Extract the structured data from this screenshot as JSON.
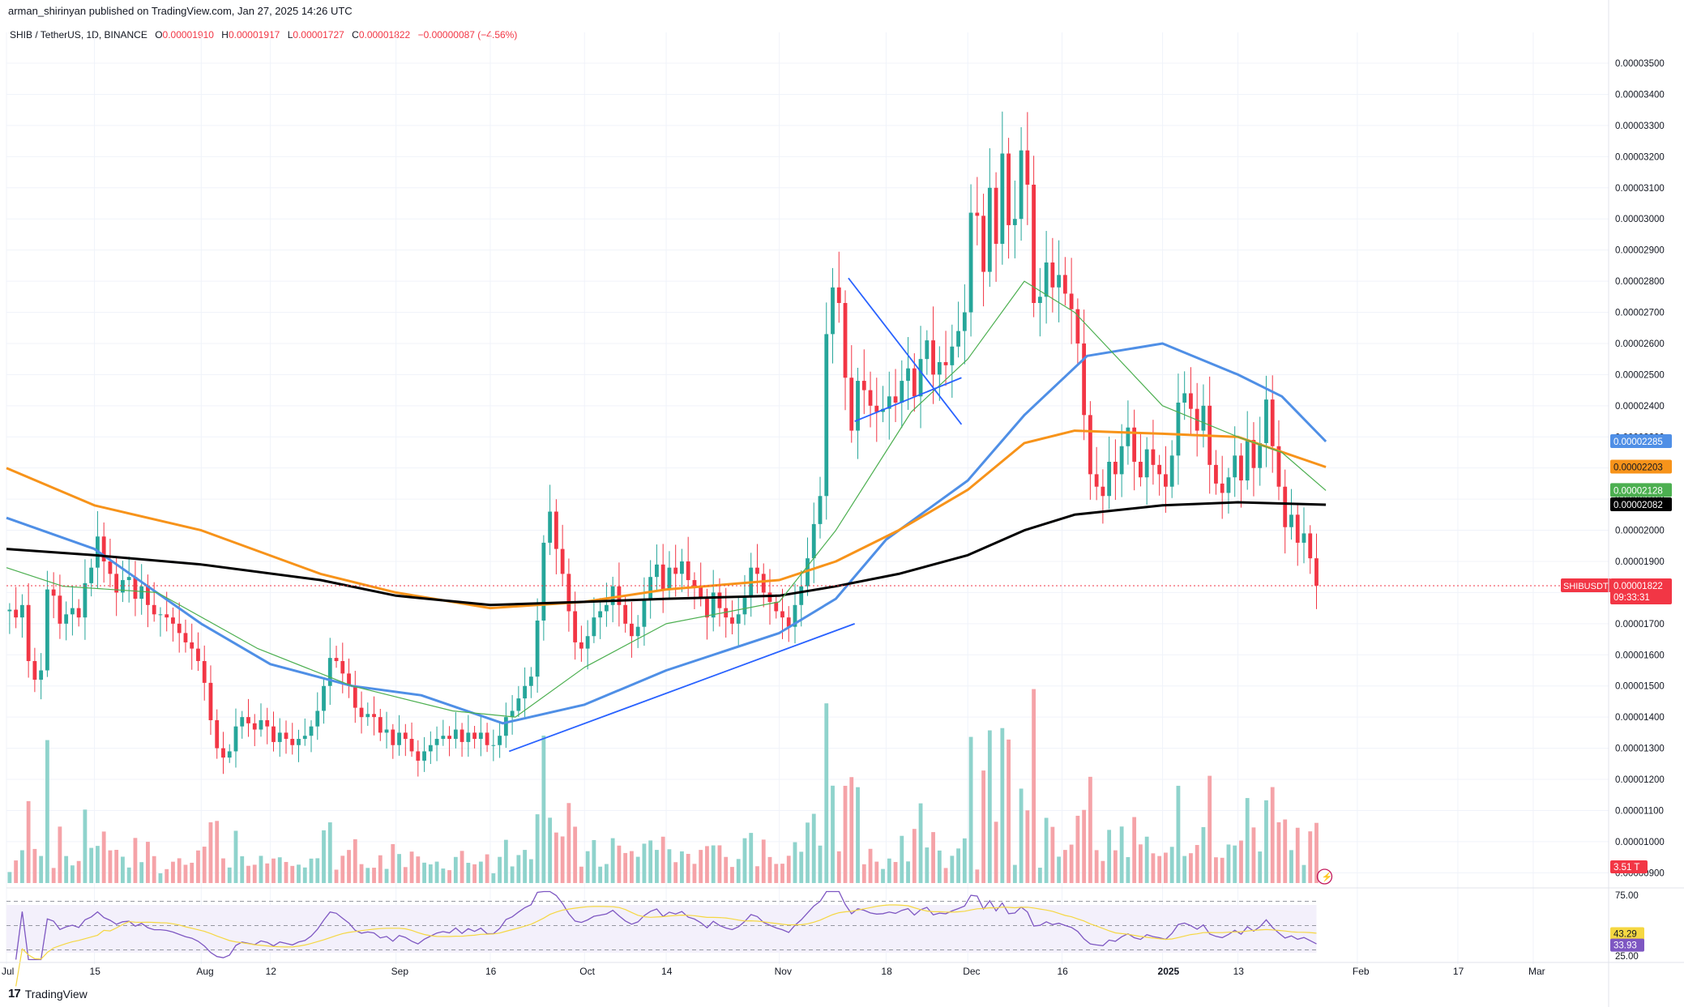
{
  "header": {
    "publish_line": "arman_shirinyan published on TradingView.com, Jan 27, 2025 14:26 UTC",
    "symbol": "SHIB / TetherUS, 1D, BINANCE",
    "ohlc": [
      {
        "label": "O",
        "value": "0.00001910"
      },
      {
        "label": "H",
        "value": "0.00001917"
      },
      {
        "label": "L",
        "value": "0.00001727"
      },
      {
        "label": "C",
        "value": "0.00001822"
      }
    ],
    "change": "−0.00000087 (−4.56%)"
  },
  "footer": {
    "brand": "TradingView",
    "brand_mark": "17"
  },
  "colors": {
    "up": "#26a69a",
    "down": "#f23645",
    "up_vol": "#8fd3cc",
    "down_vol": "#f5a3a8",
    "ma_blue": "#4f8fe6",
    "ma_orange": "#f7931a",
    "ma_black": "#000000",
    "ma_green": "#4caf50",
    "trend": "#2962ff",
    "rsi": "#7e57c2",
    "rsi_ma": "#f5d742",
    "rsi_bg": "#f3f0fb"
  },
  "chart_data": [
    {
      "type": "candlestick",
      "symbol": "SHIBUSDT",
      "ylim": [
        8.8e-06,
        3.56e-05
      ],
      "y_ticks": [
        "0.00000900",
        "0.00001000",
        "0.00001100",
        "0.00001200",
        "0.00001300",
        "0.00001400",
        "0.00001500",
        "0.00001600",
        "0.00001700",
        "0.00001800",
        "0.00001900",
        "0.00002000",
        "0.00002100",
        "0.00002200",
        "0.00002300",
        "0.00002400",
        "0.00002500",
        "0.00002600",
        "0.00002700",
        "0.00002800",
        "0.00002900",
        "0.00003000",
        "0.00003100",
        "0.00003200",
        "0.00003300",
        "0.00003400",
        "0.00003500"
      ],
      "x_range": [
        "2024-07-01",
        "2025-03-13"
      ],
      "x_ticks": [
        {
          "date": "2024-07-01",
          "label": "Jul"
        },
        {
          "date": "2024-07-15",
          "label": "15"
        },
        {
          "date": "2024-08-01",
          "label": "Aug"
        },
        {
          "date": "2024-08-12",
          "label": "12"
        },
        {
          "date": "2024-09-01",
          "label": "Sep"
        },
        {
          "date": "2024-09-16",
          "label": "16"
        },
        {
          "date": "2024-10-01",
          "label": "Oct"
        },
        {
          "date": "2024-10-14",
          "label": "14"
        },
        {
          "date": "2024-11-01",
          "label": "Nov"
        },
        {
          "date": "2024-11-18",
          "label": "18"
        },
        {
          "date": "2024-12-01",
          "label": "Dec"
        },
        {
          "date": "2024-12-16",
          "label": "16"
        },
        {
          "date": "2025-01-01",
          "label": "2025"
        },
        {
          "date": "2025-01-13",
          "label": "13"
        },
        {
          "date": "2025-02-01",
          "label": "Feb"
        },
        {
          "date": "2025-02-17",
          "label": "17"
        },
        {
          "date": "2025-03-01",
          "label": "Mar"
        }
      ],
      "candles_start": "2024-07-01",
      "closes": [
        1.745,
        1.72,
        1.76,
        1.58,
        1.52,
        1.55,
        1.81,
        1.79,
        1.7,
        1.73,
        1.75,
        1.72,
        1.83,
        1.88,
        1.98,
        1.9,
        1.86,
        1.8,
        1.84,
        1.85,
        1.78,
        1.82,
        1.76,
        1.73,
        1.73,
        1.72,
        1.7,
        1.67,
        1.64,
        1.62,
        1.58,
        1.51,
        1.39,
        1.3,
        1.27,
        1.29,
        1.37,
        1.4,
        1.38,
        1.36,
        1.39,
        1.37,
        1.32,
        1.35,
        1.33,
        1.31,
        1.33,
        1.34,
        1.37,
        1.42,
        1.5,
        1.59,
        1.58,
        1.54,
        1.5,
        1.43,
        1.4,
        1.41,
        1.4,
        1.35,
        1.36,
        1.31,
        1.35,
        1.33,
        1.29,
        1.26,
        1.29,
        1.31,
        1.33,
        1.34,
        1.33,
        1.36,
        1.32,
        1.35,
        1.33,
        1.35,
        1.31,
        1.31,
        1.34,
        1.4,
        1.42,
        1.46,
        1.5,
        1.53,
        1.71,
        1.96,
        2.06,
        1.94,
        1.86,
        1.74,
        1.64,
        1.62,
        1.66,
        1.72,
        1.74,
        1.76,
        1.82,
        1.76,
        1.7,
        1.66,
        1.69,
        1.78,
        1.85,
        1.89,
        1.81,
        1.88,
        1.86,
        1.9,
        1.84,
        1.82,
        1.78,
        1.72,
        1.8,
        1.75,
        1.72,
        1.7,
        1.73,
        1.79,
        1.88,
        1.86,
        1.8,
        1.77,
        1.74,
        1.72,
        1.69,
        1.76,
        1.82,
        1.91,
        2.02,
        2.11,
        2.63,
        2.78,
        2.73,
        2.49,
        2.32,
        2.48,
        2.45,
        2.4,
        2.38,
        2.39,
        2.43,
        2.41,
        2.48,
        2.52,
        2.43,
        2.55,
        2.61,
        2.5,
        2.54,
        2.53,
        2.59,
        2.64,
        2.7,
        3.02,
        3.01,
        2.83,
        3.1,
        2.92,
        3.21,
        2.98,
        3.0,
        3.22,
        3.11,
        2.73,
        2.75,
        2.86,
        2.78,
        2.82,
        2.76,
        2.71,
        2.6,
        2.37,
        2.18,
        2.14,
        2.11,
        2.22,
        2.18,
        2.27,
        2.33,
        2.22,
        2.17,
        2.26,
        2.21,
        2.18,
        2.14,
        2.24,
        2.41,
        2.44,
        2.39,
        2.32,
        2.4,
        2.21,
        2.15,
        2.12,
        2.17,
        2.24,
        2.16,
        2.29,
        2.2,
        2.28,
        2.42,
        2.27,
        2.14,
        2.01,
        2.05,
        1.96,
        1.99,
        1.91,
        1.822
      ],
      "opens": [
        1.74,
        1.745,
        1.72,
        1.76,
        1.58,
        1.52,
        1.55,
        1.81,
        1.79,
        1.7,
        1.73,
        1.75,
        1.72,
        1.83,
        1.88,
        1.98,
        1.9,
        1.86,
        1.8,
        1.84,
        1.85,
        1.78,
        1.82,
        1.76,
        1.73,
        1.73,
        1.72,
        1.7,
        1.67,
        1.64,
        1.62,
        1.58,
        1.51,
        1.39,
        1.3,
        1.27,
        1.29,
        1.37,
        1.4,
        1.38,
        1.36,
        1.39,
        1.37,
        1.32,
        1.35,
        1.33,
        1.31,
        1.33,
        1.34,
        1.37,
        1.42,
        1.5,
        1.59,
        1.58,
        1.54,
        1.5,
        1.43,
        1.4,
        1.41,
        1.4,
        1.35,
        1.36,
        1.31,
        1.35,
        1.33,
        1.29,
        1.26,
        1.29,
        1.31,
        1.33,
        1.34,
        1.33,
        1.36,
        1.32,
        1.35,
        1.33,
        1.35,
        1.31,
        1.31,
        1.34,
        1.4,
        1.42,
        1.46,
        1.5,
        1.53,
        1.71,
        1.96,
        2.06,
        1.94,
        1.86,
        1.74,
        1.64,
        1.62,
        1.66,
        1.72,
        1.74,
        1.76,
        1.82,
        1.76,
        1.7,
        1.66,
        1.69,
        1.78,
        1.85,
        1.89,
        1.81,
        1.88,
        1.86,
        1.9,
        1.84,
        1.82,
        1.78,
        1.72,
        1.8,
        1.75,
        1.72,
        1.7,
        1.73,
        1.79,
        1.88,
        1.86,
        1.8,
        1.77,
        1.74,
        1.72,
        1.69,
        1.76,
        1.82,
        1.91,
        2.02,
        2.11,
        2.63,
        2.78,
        2.73,
        2.49,
        2.32,
        2.48,
        2.45,
        2.4,
        2.38,
        2.39,
        2.43,
        2.41,
        2.48,
        2.52,
        2.43,
        2.55,
        2.61,
        2.5,
        2.54,
        2.53,
        2.59,
        2.64,
        2.7,
        3.02,
        3.01,
        2.83,
        3.1,
        2.92,
        3.21,
        2.98,
        3.0,
        3.22,
        3.11,
        2.73,
        2.75,
        2.86,
        2.78,
        2.82,
        2.76,
        2.71,
        2.6,
        2.37,
        2.18,
        2.14,
        2.11,
        2.22,
        2.18,
        2.27,
        2.33,
        2.22,
        2.17,
        2.26,
        2.21,
        2.18,
        2.14,
        2.24,
        2.41,
        2.44,
        2.39,
        2.32,
        2.4,
        2.21,
        2.15,
        2.12,
        2.17,
        2.24,
        2.16,
        2.29,
        2.2,
        2.28,
        2.42,
        2.27,
        2.14,
        2.01,
        2.05,
        1.96,
        1.99,
        1.91
      ],
      "price_unit": "0.00001",
      "moving_averages": [
        {
          "color": "ma_blue",
          "points": [
            [
              "2024-07-01",
              2.04
            ],
            [
              "2024-07-15",
              1.94
            ],
            [
              "2024-08-01",
              1.7
            ],
            [
              "2024-08-12",
              1.57
            ],
            [
              "2024-08-25",
              1.5
            ],
            [
              "2024-09-05",
              1.47
            ],
            [
              "2024-09-18",
              1.38
            ],
            [
              "2024-10-01",
              1.44
            ],
            [
              "2024-10-14",
              1.55
            ],
            [
              "2024-11-01",
              1.67
            ],
            [
              "2024-11-10",
              1.78
            ],
            [
              "2024-11-18",
              1.97
            ],
            [
              "2024-12-01",
              2.16
            ],
            [
              "2024-12-10",
              2.37
            ],
            [
              "2024-12-20",
              2.56
            ],
            [
              "2025-01-01",
              2.6
            ],
            [
              "2025-01-13",
              2.5
            ],
            [
              "2025-01-20",
              2.43
            ],
            [
              "2025-01-27",
              2.285
            ]
          ]
        },
        {
          "color": "ma_orange",
          "points": [
            [
              "2024-07-01",
              2.2
            ],
            [
              "2024-07-15",
              2.08
            ],
            [
              "2024-08-01",
              2.0
            ],
            [
              "2024-08-20",
              1.86
            ],
            [
              "2024-09-01",
              1.8
            ],
            [
              "2024-09-16",
              1.75
            ],
            [
              "2024-10-01",
              1.77
            ],
            [
              "2024-10-14",
              1.81
            ],
            [
              "2024-11-01",
              1.84
            ],
            [
              "2024-11-10",
              1.9
            ],
            [
              "2024-11-20",
              2.0
            ],
            [
              "2024-12-01",
              2.13
            ],
            [
              "2024-12-10",
              2.28
            ],
            [
              "2024-12-18",
              2.32
            ],
            [
              "2025-01-01",
              2.31
            ],
            [
              "2025-01-13",
              2.3
            ],
            [
              "2025-01-27",
              2.203
            ]
          ]
        },
        {
          "color": "ma_black",
          "points": [
            [
              "2024-07-01",
              1.94
            ],
            [
              "2024-07-15",
              1.92
            ],
            [
              "2024-08-01",
              1.89
            ],
            [
              "2024-08-20",
              1.84
            ],
            [
              "2024-09-01",
              1.79
            ],
            [
              "2024-09-16",
              1.76
            ],
            [
              "2024-10-01",
              1.77
            ],
            [
              "2024-10-14",
              1.78
            ],
            [
              "2024-11-01",
              1.79
            ],
            [
              "2024-11-10",
              1.82
            ],
            [
              "2024-11-20",
              1.86
            ],
            [
              "2024-12-01",
              1.92
            ],
            [
              "2024-12-10",
              2.0
            ],
            [
              "2024-12-18",
              2.05
            ],
            [
              "2025-01-01",
              2.08
            ],
            [
              "2025-01-13",
              2.09
            ],
            [
              "2025-01-27",
              2.082
            ]
          ]
        },
        {
          "color": "ma_green",
          "points": [
            [
              "2024-07-01",
              1.88
            ],
            [
              "2024-07-10",
              1.82
            ],
            [
              "2024-07-25",
              1.8
            ],
            [
              "2024-08-10",
              1.62
            ],
            [
              "2024-08-25",
              1.5
            ],
            [
              "2024-09-10",
              1.42
            ],
            [
              "2024-09-20",
              1.4
            ],
            [
              "2024-10-01",
              1.56
            ],
            [
              "2024-10-14",
              1.7
            ],
            [
              "2024-11-01",
              1.77
            ],
            [
              "2024-11-10",
              2.0
            ],
            [
              "2024-11-22",
              2.38
            ],
            [
              "2024-12-01",
              2.55
            ],
            [
              "2024-12-10",
              2.8
            ],
            [
              "2024-12-18",
              2.7
            ],
            [
              "2025-01-01",
              2.4
            ],
            [
              "2025-01-13",
              2.3
            ],
            [
              "2025-01-20",
              2.25
            ],
            [
              "2025-01-27",
              2.128
            ]
          ]
        }
      ],
      "trend_lines": [
        [
          [
            "2024-09-19",
            1.29
          ],
          [
            "2024-11-13",
            1.7
          ]
        ],
        [
          [
            "2024-11-12",
            2.81
          ],
          [
            "2024-11-30",
            2.34
          ]
        ],
        [
          [
            "2024-11-13",
            2.35
          ],
          [
            "2024-11-30",
            2.49
          ]
        ]
      ],
      "current_price_line": 1.822,
      "price_labels": [
        {
          "value": "0.00002285",
          "level": 2.285,
          "color": "ma_blue"
        },
        {
          "value": "0.00002203",
          "level": 2.203,
          "color": "ma_orange"
        },
        {
          "value": "0.00002128",
          "level": 2.128,
          "color": "ma_green"
        },
        {
          "value": "0.00002082",
          "level": 2.082,
          "color": "ma_black"
        }
      ],
      "last_price": {
        "symbol": "SHIBUSDT",
        "value": "0.00001822",
        "countdown": "09:33:31"
      },
      "volume_label": "3.51 T"
    },
    {
      "type": "line",
      "indicator": "RSI",
      "ylim": [
        25,
        75
      ],
      "levels": [
        "75.00",
        "25.00"
      ],
      "rsi_value": "33.93",
      "rsi_ma_value": "43.29"
    }
  ]
}
